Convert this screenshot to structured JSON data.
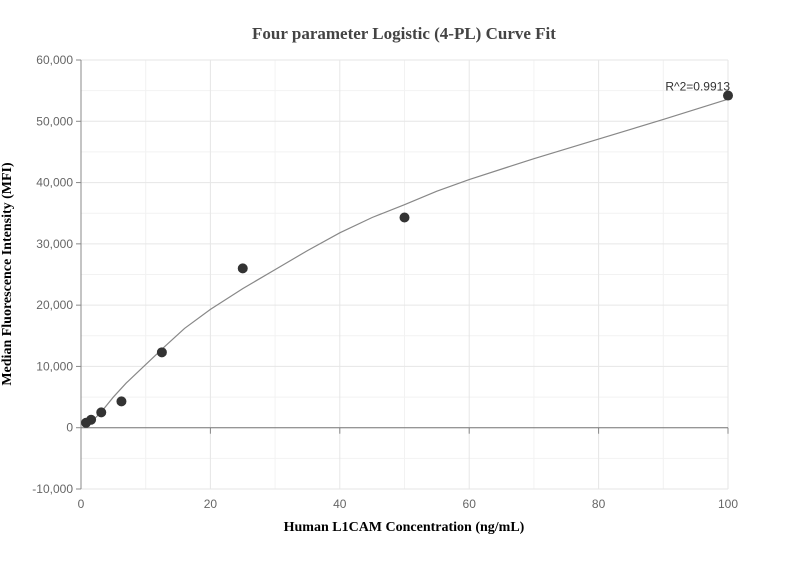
{
  "chart_data": {
    "type": "scatter",
    "title": "Four parameter Logistic (4-PL) Curve Fit",
    "xlabel": "Human L1CAM Concentration (ng/mL)",
    "ylabel": "Median Fluorescence Intensity (MFI)",
    "xlim": [
      0,
      100
    ],
    "ylim": [
      -10000,
      60000
    ],
    "x_ticks": [
      0,
      20,
      40,
      60,
      80,
      100
    ],
    "y_ticks": [
      -10000,
      0,
      10000,
      20000,
      30000,
      40000,
      50000,
      60000
    ],
    "x_tick_labels": [
      "0",
      "20",
      "40",
      "60",
      "80",
      "100"
    ],
    "y_tick_labels": [
      "-10,000",
      "0",
      "10,000",
      "20,000",
      "30,000",
      "40,000",
      "50,000",
      "60,000"
    ],
    "grid": true,
    "series": [
      {
        "kind": "points",
        "x": [
          0.78,
          1.56,
          3.13,
          6.25,
          12.5,
          25,
          50,
          100
        ],
        "y": [
          800,
          1300,
          2500,
          4300,
          12300,
          26000,
          34300,
          54200
        ]
      },
      {
        "kind": "fit-curve",
        "x": [
          0.5,
          1,
          2,
          3,
          5,
          7,
          10,
          13,
          16,
          20,
          25,
          30,
          35,
          40,
          45,
          50,
          55,
          60,
          70,
          80,
          90,
          100
        ],
        "y": [
          400,
          600,
          1400,
          2400,
          5000,
          7300,
          10300,
          13300,
          16200,
          19300,
          22700,
          25800,
          28900,
          31800,
          34300,
          36400,
          38600,
          40500,
          43900,
          47100,
          50300,
          53600
        ]
      }
    ],
    "annotations": [
      {
        "text": "R^2=0.9913",
        "x": 100,
        "y": 54200
      }
    ],
    "colors": {
      "points": "#333333",
      "curve": "#888888",
      "grid": "#e6e6e6",
      "axis": "#888888"
    }
  }
}
